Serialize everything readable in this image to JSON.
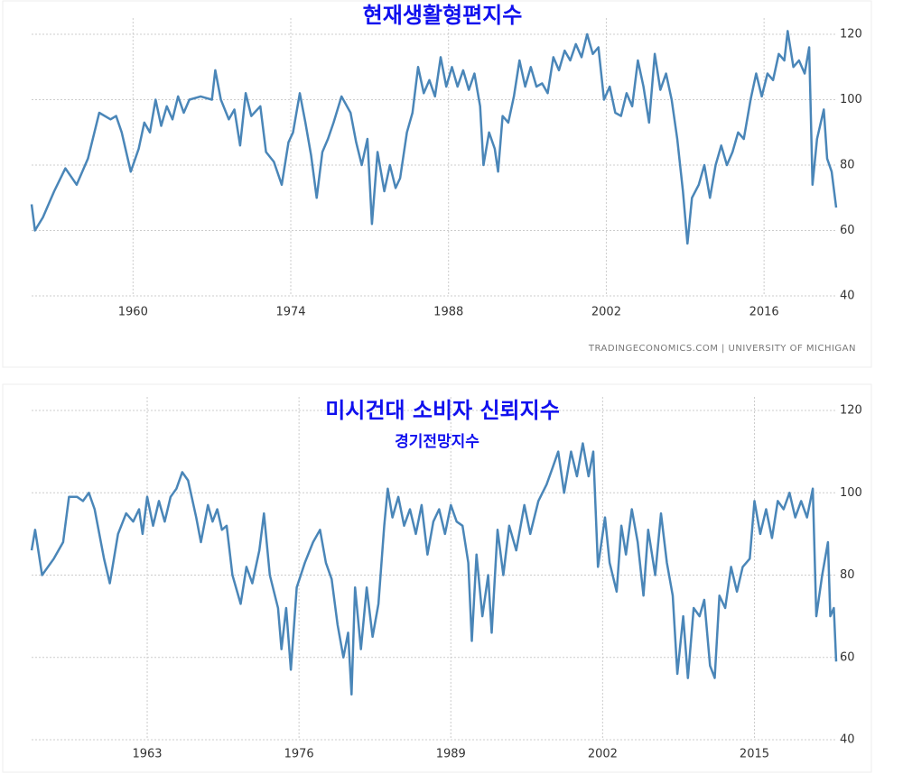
{
  "chart_data": [
    {
      "type": "line",
      "title": "현재생활형편지수",
      "source": "TRADINGECONOMICS.COM | UNIVERSITY OF MICHIGAN",
      "x": [
        1951.0,
        1951.3,
        1952,
        1953,
        1954,
        1955,
        1956,
        1957,
        1958,
        1958.5,
        1959,
        1959.8,
        1960.5,
        1961,
        1961.5,
        1962,
        1962.5,
        1963,
        1963.5,
        1964,
        1964.5,
        1965,
        1966,
        1967,
        1967.3,
        1967.8,
        1968.5,
        1969,
        1969.5,
        1970,
        1970.5,
        1971.3,
        1971.8,
        1972.5,
        1973.2,
        1973.8,
        1974.2,
        1974.8,
        1975.3,
        1975.8,
        1976.3,
        1976.8,
        1977.3,
        1977.8,
        1978.5,
        1979.3,
        1979.8,
        1980.3,
        1980.8,
        1981.2,
        1981.7,
        1982.3,
        1982.8,
        1983.3,
        1983.7,
        1984.3,
        1984.8,
        1985.3,
        1985.8,
        1986.3,
        1986.8,
        1987.3,
        1987.8,
        1988.3,
        1988.8,
        1989.3,
        1989.8,
        1990.3,
        1990.8,
        1991.1,
        1991.6,
        1992.1,
        1992.4,
        1992.8,
        1993.3,
        1993.8,
        1994.3,
        1994.8,
        1995.3,
        1995.8,
        1996.3,
        1996.8,
        1997.3,
        1997.8,
        1998.3,
        1998.8,
        1999.3,
        1999.8,
        2000.3,
        2000.8,
        2001.3,
        2001.8,
        2002.3,
        2002.8,
        2003.3,
        2003.8,
        2004.3,
        2004.8,
        2005.3,
        2005.8,
        2006.3,
        2006.8,
        2007.3,
        2007.8,
        2008.3,
        2008.8,
        2009.2,
        2009.6,
        2010.2,
        2010.7,
        2011.2,
        2011.7,
        2012.2,
        2012.7,
        2013.2,
        2013.7,
        2014.2,
        2014.8,
        2015.3,
        2015.8,
        2016.3,
        2016.8,
        2017.3,
        2017.8,
        2018.1,
        2018.6,
        2019.1,
        2019.6,
        2020.0,
        2020.3,
        2020.7,
        2021.3,
        2021.6,
        2022.0,
        2022.4
      ],
      "series": [
        {
          "color": "#4a86b8",
          "values": [
            68,
            60,
            64,
            72,
            79,
            74,
            82,
            96,
            94,
            95,
            90,
            78,
            85,
            93,
            90,
            100,
            92,
            98,
            94,
            101,
            96,
            100,
            101,
            100,
            109,
            100,
            94,
            97,
            86,
            102,
            95,
            98,
            84,
            81,
            74,
            87,
            90,
            102,
            93,
            83,
            70,
            84,
            88,
            93,
            101,
            96,
            87,
            80,
            88,
            62,
            84,
            72,
            80,
            73,
            76,
            90,
            96,
            110,
            102,
            106,
            101,
            113,
            104,
            110,
            104,
            109,
            103,
            108,
            98,
            80,
            90,
            85,
            78,
            95,
            93,
            101,
            112,
            104,
            110,
            104,
            105,
            102,
            113,
            109,
            115,
            112,
            117,
            113,
            120,
            114,
            116,
            100,
            104,
            96,
            95,
            102,
            98,
            112,
            104,
            93,
            114,
            103,
            108,
            100,
            88,
            72,
            56,
            70,
            74,
            80,
            70,
            80,
            86,
            80,
            84,
            90,
            88,
            100,
            108,
            101,
            108,
            106,
            114,
            112,
            121,
            110,
            112,
            108,
            116,
            74,
            88,
            97,
            82,
            78,
            67
          ]
        }
      ],
      "xlim": [
        1951.0,
        2022.4
      ],
      "xticks": [
        1960,
        1974,
        1988,
        2002,
        2016
      ],
      "ylim": [
        40,
        120
      ],
      "yticks": [
        40,
        60,
        80,
        100,
        120
      ],
      "grid": true
    },
    {
      "type": "line",
      "title": "미시건대 소비자 신뢰지수",
      "subtitle": "경기전망지수",
      "x": [
        1953.1,
        1953.4,
        1954.0,
        1955.0,
        1955.8,
        1956.3,
        1957.0,
        1957.5,
        1958.0,
        1958.5,
        1959.3,
        1959.8,
        1960.5,
        1961.2,
        1961.8,
        1962.3,
        1962.6,
        1963.0,
        1963.5,
        1964.0,
        1964.5,
        1965.0,
        1965.5,
        1966.0,
        1966.5,
        1967.2,
        1967.6,
        1968.2,
        1968.6,
        1969.0,
        1969.4,
        1969.8,
        1970.3,
        1971.0,
        1971.5,
        1972.0,
        1972.6,
        1973.0,
        1973.5,
        1974.2,
        1974.5,
        1974.9,
        1975.3,
        1975.8,
        1976.5,
        1977.2,
        1977.8,
        1978.3,
        1978.8,
        1979.3,
        1979.8,
        1980.2,
        1980.5,
        1980.8,
        1981.3,
        1981.8,
        1982.3,
        1982.8,
        1983.3,
        1983.6,
        1984.0,
        1984.5,
        1985.0,
        1985.5,
        1986.0,
        1986.5,
        1987.0,
        1987.5,
        1988.0,
        1988.5,
        1989.0,
        1989.5,
        1990.0,
        1990.5,
        1990.8,
        1991.2,
        1991.7,
        1992.2,
        1992.5,
        1993.0,
        1993.5,
        1994.0,
        1994.6,
        1995.3,
        1995.8,
        1996.5,
        1997.2,
        1997.7,
        1998.2,
        1998.7,
        1999.3,
        1999.8,
        2000.3,
        2000.8,
        2001.2,
        2001.6,
        2002.2,
        2002.6,
        2003.2,
        2003.6,
        2004.0,
        2004.5,
        2005.0,
        2005.5,
        2005.9,
        2006.5,
        2007.0,
        2007.5,
        2008.0,
        2008.4,
        2008.9,
        2009.3,
        2009.8,
        2010.3,
        2010.7,
        2011.2,
        2011.6,
        2012.0,
        2012.5,
        2013.0,
        2013.5,
        2014.0,
        2014.6,
        2015.0,
        2015.5,
        2016.0,
        2016.5,
        2017.0,
        2017.5,
        2018.0,
        2018.5,
        2019.0,
        2019.5,
        2020.0,
        2020.3,
        2020.8,
        2021.3,
        2021.5,
        2021.8,
        2022.0
      ],
      "series": [
        {
          "color": "#4a86b8",
          "values": [
            86,
            91,
            80,
            84,
            88,
            99,
            99,
            98,
            100,
            96,
            84,
            78,
            90,
            95,
            93,
            96,
            90,
            99,
            92,
            98,
            93,
            99,
            101,
            105,
            103,
            94,
            88,
            97,
            93,
            96,
            91,
            92,
            80,
            73,
            82,
            78,
            86,
            95,
            80,
            72,
            62,
            72,
            57,
            77,
            83,
            88,
            91,
            83,
            79,
            68,
            60,
            66,
            51,
            77,
            62,
            77,
            65,
            73,
            92,
            101,
            94,
            99,
            92,
            96,
            90,
            97,
            85,
            93,
            96,
            90,
            97,
            93,
            92,
            83,
            64,
            85,
            70,
            80,
            66,
            91,
            80,
            92,
            86,
            97,
            90,
            98,
            102,
            106,
            110,
            100,
            110,
            104,
            112,
            104,
            110,
            82,
            94,
            83,
            76,
            92,
            85,
            96,
            88,
            75,
            91,
            80,
            95,
            83,
            75,
            56,
            70,
            55,
            72,
            70,
            74,
            58,
            55,
            75,
            72,
            82,
            76,
            82,
            84,
            98,
            90,
            96,
            89,
            98,
            96,
            100,
            94,
            98,
            94,
            101,
            70,
            80,
            88,
            70,
            72,
            59
          ]
        }
      ],
      "xlim": [
        1953.1,
        2022.0
      ],
      "xticks": [
        1963,
        1976,
        1989,
        2002,
        2015
      ],
      "ylim": [
        40,
        120
      ],
      "yticks": [
        40,
        60,
        80,
        100,
        120
      ],
      "grid": true
    }
  ]
}
